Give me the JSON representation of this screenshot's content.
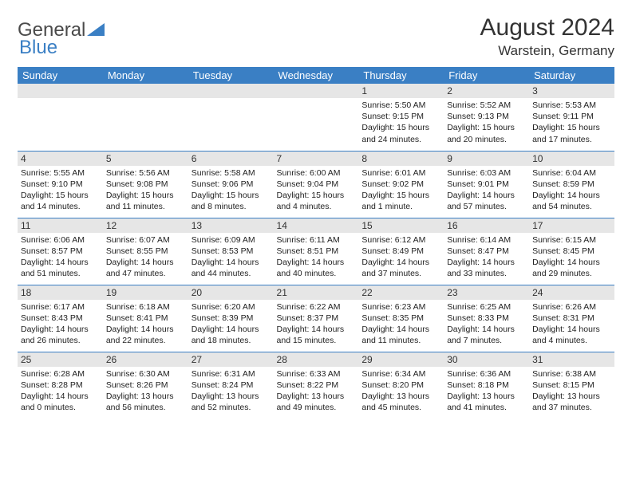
{
  "logo": {
    "general": "General",
    "blue": "Blue"
  },
  "title": "August 2024",
  "location": "Warstein, Germany",
  "colors": {
    "header_bg": "#3a7fc4",
    "header_fg": "#ffffff",
    "daynum_bg": "#e6e6e6",
    "border": "#3a7fc4",
    "text": "#333333"
  },
  "day_headers": [
    "Sunday",
    "Monday",
    "Tuesday",
    "Wednesday",
    "Thursday",
    "Friday",
    "Saturday"
  ],
  "weeks": [
    [
      null,
      null,
      null,
      null,
      {
        "n": "1",
        "sunrise": "5:50 AM",
        "sunset": "9:15 PM",
        "daylight": "15 hours and 24 minutes."
      },
      {
        "n": "2",
        "sunrise": "5:52 AM",
        "sunset": "9:13 PM",
        "daylight": "15 hours and 20 minutes."
      },
      {
        "n": "3",
        "sunrise": "5:53 AM",
        "sunset": "9:11 PM",
        "daylight": "15 hours and 17 minutes."
      }
    ],
    [
      {
        "n": "4",
        "sunrise": "5:55 AM",
        "sunset": "9:10 PM",
        "daylight": "15 hours and 14 minutes."
      },
      {
        "n": "5",
        "sunrise": "5:56 AM",
        "sunset": "9:08 PM",
        "daylight": "15 hours and 11 minutes."
      },
      {
        "n": "6",
        "sunrise": "5:58 AM",
        "sunset": "9:06 PM",
        "daylight": "15 hours and 8 minutes."
      },
      {
        "n": "7",
        "sunrise": "6:00 AM",
        "sunset": "9:04 PM",
        "daylight": "15 hours and 4 minutes."
      },
      {
        "n": "8",
        "sunrise": "6:01 AM",
        "sunset": "9:02 PM",
        "daylight": "15 hours and 1 minute."
      },
      {
        "n": "9",
        "sunrise": "6:03 AM",
        "sunset": "9:01 PM",
        "daylight": "14 hours and 57 minutes."
      },
      {
        "n": "10",
        "sunrise": "6:04 AM",
        "sunset": "8:59 PM",
        "daylight": "14 hours and 54 minutes."
      }
    ],
    [
      {
        "n": "11",
        "sunrise": "6:06 AM",
        "sunset": "8:57 PM",
        "daylight": "14 hours and 51 minutes."
      },
      {
        "n": "12",
        "sunrise": "6:07 AM",
        "sunset": "8:55 PM",
        "daylight": "14 hours and 47 minutes."
      },
      {
        "n": "13",
        "sunrise": "6:09 AM",
        "sunset": "8:53 PM",
        "daylight": "14 hours and 44 minutes."
      },
      {
        "n": "14",
        "sunrise": "6:11 AM",
        "sunset": "8:51 PM",
        "daylight": "14 hours and 40 minutes."
      },
      {
        "n": "15",
        "sunrise": "6:12 AM",
        "sunset": "8:49 PM",
        "daylight": "14 hours and 37 minutes."
      },
      {
        "n": "16",
        "sunrise": "6:14 AM",
        "sunset": "8:47 PM",
        "daylight": "14 hours and 33 minutes."
      },
      {
        "n": "17",
        "sunrise": "6:15 AM",
        "sunset": "8:45 PM",
        "daylight": "14 hours and 29 minutes."
      }
    ],
    [
      {
        "n": "18",
        "sunrise": "6:17 AM",
        "sunset": "8:43 PM",
        "daylight": "14 hours and 26 minutes."
      },
      {
        "n": "19",
        "sunrise": "6:18 AM",
        "sunset": "8:41 PM",
        "daylight": "14 hours and 22 minutes."
      },
      {
        "n": "20",
        "sunrise": "6:20 AM",
        "sunset": "8:39 PM",
        "daylight": "14 hours and 18 minutes."
      },
      {
        "n": "21",
        "sunrise": "6:22 AM",
        "sunset": "8:37 PM",
        "daylight": "14 hours and 15 minutes."
      },
      {
        "n": "22",
        "sunrise": "6:23 AM",
        "sunset": "8:35 PM",
        "daylight": "14 hours and 11 minutes."
      },
      {
        "n": "23",
        "sunrise": "6:25 AM",
        "sunset": "8:33 PM",
        "daylight": "14 hours and 7 minutes."
      },
      {
        "n": "24",
        "sunrise": "6:26 AM",
        "sunset": "8:31 PM",
        "daylight": "14 hours and 4 minutes."
      }
    ],
    [
      {
        "n": "25",
        "sunrise": "6:28 AM",
        "sunset": "8:28 PM",
        "daylight": "14 hours and 0 minutes."
      },
      {
        "n": "26",
        "sunrise": "6:30 AM",
        "sunset": "8:26 PM",
        "daylight": "13 hours and 56 minutes."
      },
      {
        "n": "27",
        "sunrise": "6:31 AM",
        "sunset": "8:24 PM",
        "daylight": "13 hours and 52 minutes."
      },
      {
        "n": "28",
        "sunrise": "6:33 AM",
        "sunset": "8:22 PM",
        "daylight": "13 hours and 49 minutes."
      },
      {
        "n": "29",
        "sunrise": "6:34 AM",
        "sunset": "8:20 PM",
        "daylight": "13 hours and 45 minutes."
      },
      {
        "n": "30",
        "sunrise": "6:36 AM",
        "sunset": "8:18 PM",
        "daylight": "13 hours and 41 minutes."
      },
      {
        "n": "31",
        "sunrise": "6:38 AM",
        "sunset": "8:15 PM",
        "daylight": "13 hours and 37 minutes."
      }
    ]
  ],
  "labels": {
    "sunrise": "Sunrise: ",
    "sunset": "Sunset: ",
    "daylight": "Daylight: "
  }
}
